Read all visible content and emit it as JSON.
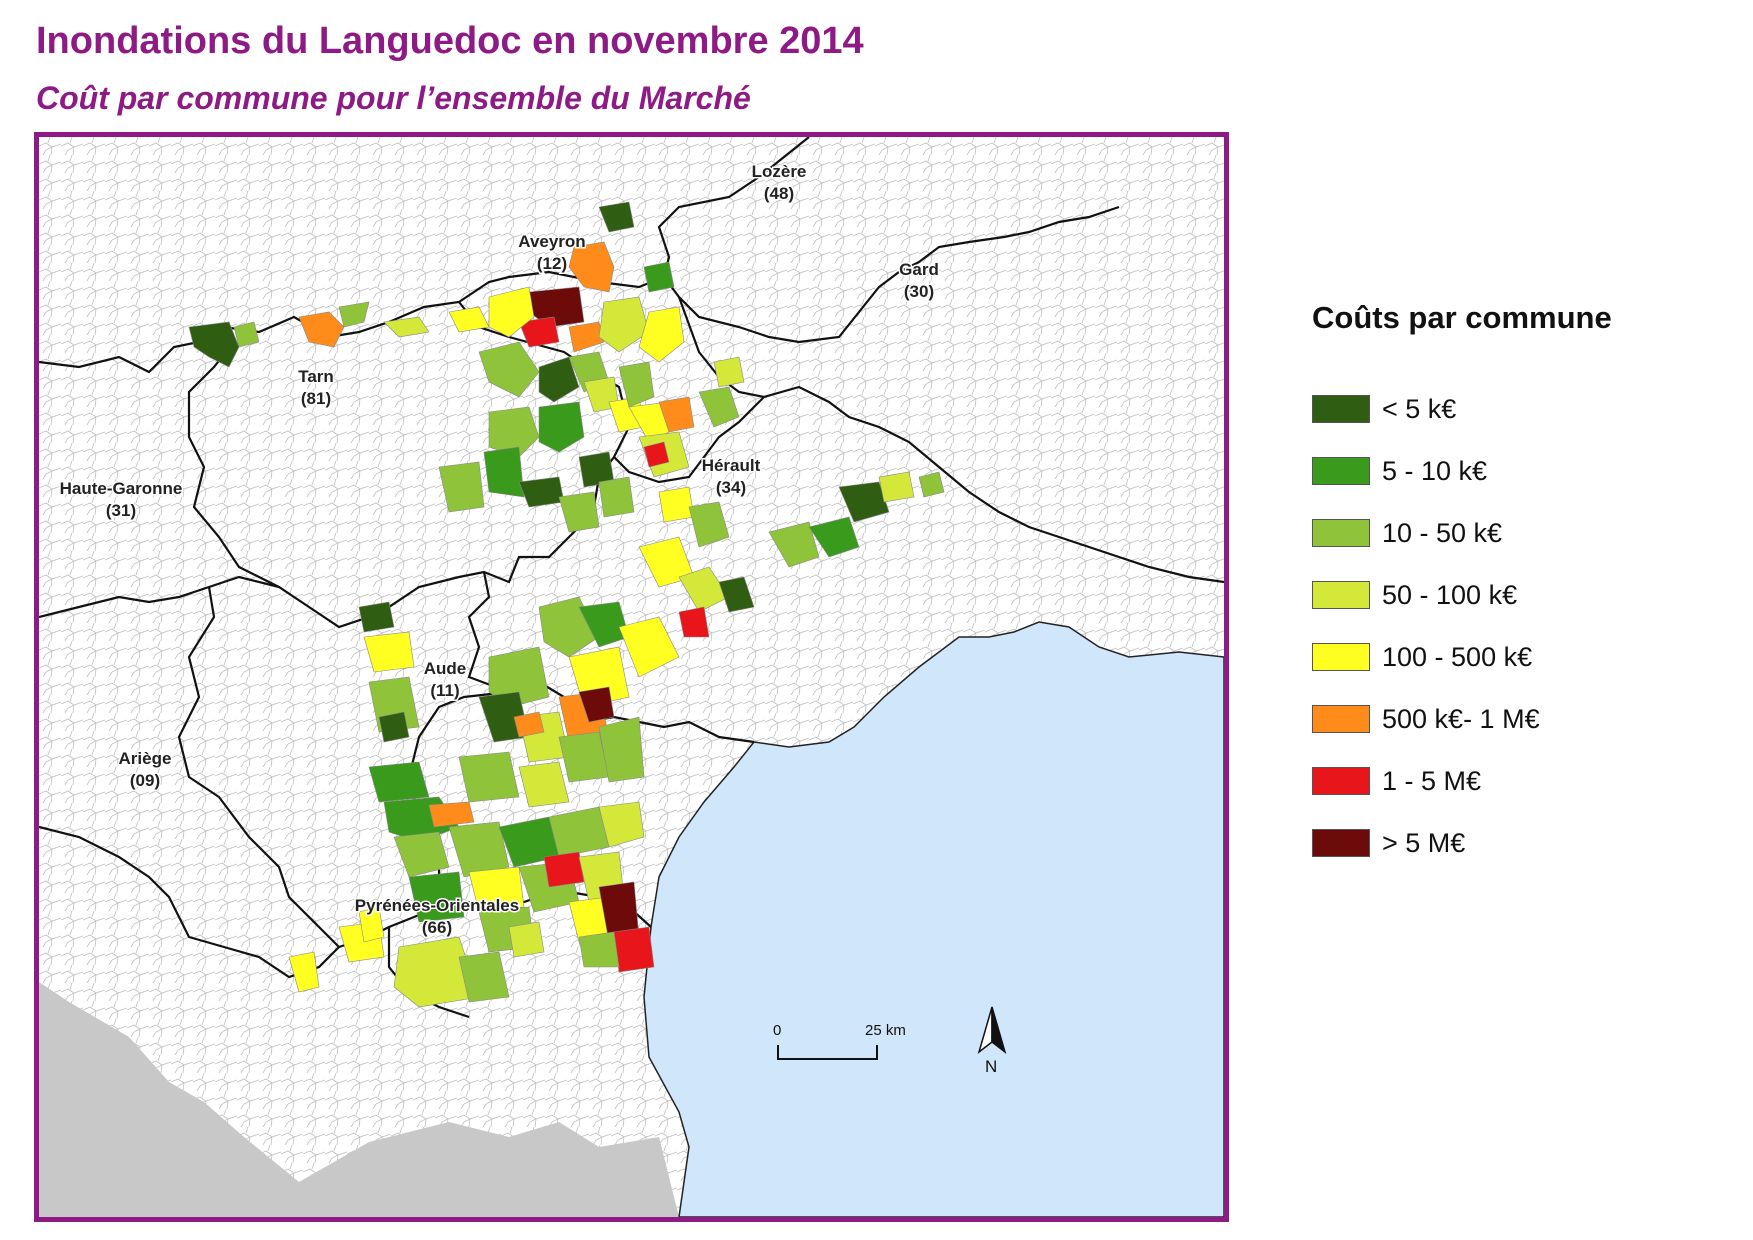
{
  "title": "Inondations du Languedoc en novembre 2014",
  "subtitle": "Coût par commune pour l’ensemble du Marché",
  "map": {
    "departments": [
      {
        "id": "lozere",
        "name": "Lozère",
        "code": "(48)"
      },
      {
        "id": "aveyron",
        "name": "Aveyron",
        "code": "(12)"
      },
      {
        "id": "gard",
        "name": "Gard",
        "code": "(30)"
      },
      {
        "id": "tarn",
        "name": "Tarn",
        "code": "(81)"
      },
      {
        "id": "herault",
        "name": "Hérault",
        "code": "(34)"
      },
      {
        "id": "haute-garonne",
        "name": "Haute-Garonne",
        "code": "(31)"
      },
      {
        "id": "aude",
        "name": "Aude",
        "code": "(11)"
      },
      {
        "id": "ariege",
        "name": "Ariège",
        "code": "(09)"
      },
      {
        "id": "pyrenees-orientales",
        "name": "Pyrénées-Orientales",
        "code": "(66)"
      }
    ],
    "scale_bar": {
      "start": "0",
      "end": "25 km"
    },
    "north_arrow": "N",
    "colors": {
      "sea": "#cfe6fb",
      "outside": "#c8c8c8",
      "land": "#ffffff",
      "frame": "#8e1a86"
    }
  },
  "legend": {
    "title": "Coûts par commune",
    "items": [
      {
        "label": "< 5 k€",
        "color": "#2f5e12"
      },
      {
        "label": "5 - 10 k€",
        "color": "#3a9a1c"
      },
      {
        "label": "10 - 50 k€",
        "color": "#8fc43a"
      },
      {
        "label": "50 - 100 k€",
        "color": "#d4e83a"
      },
      {
        "label": "100 - 500 k€",
        "color": "#ffff22"
      },
      {
        "label": "500 k€- 1 M€",
        "color": "#ff8c1a"
      },
      {
        "label": "1 - 5 M€",
        "color": "#e8161b"
      },
      {
        "label": "> 5 M€",
        "color": "#6d0a0a"
      }
    ]
  }
}
